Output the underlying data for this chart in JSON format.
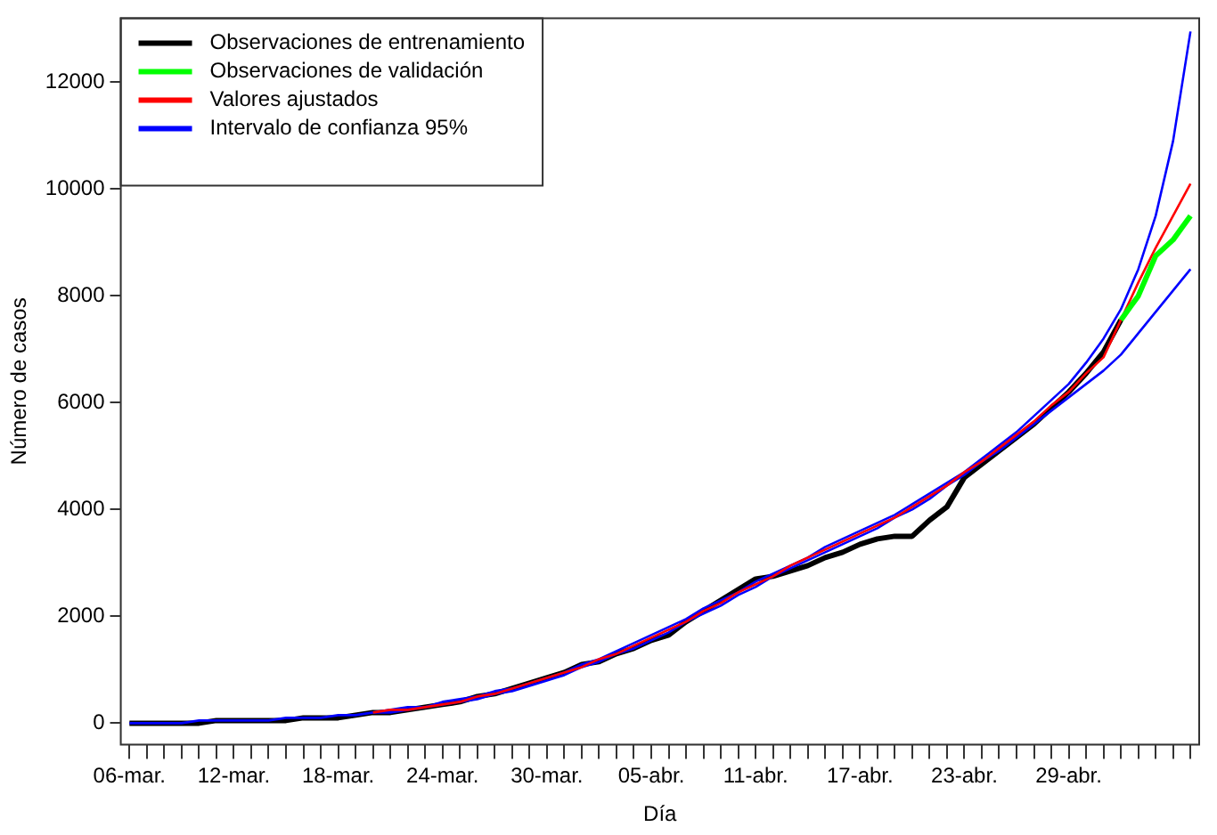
{
  "chart_data": {
    "type": "line",
    "xlabel": "Día",
    "ylabel": "Número de casos",
    "categories": [
      "06-mar.",
      null,
      null,
      null,
      null,
      null,
      "12-mar.",
      null,
      null,
      null,
      null,
      null,
      "18-mar.",
      null,
      null,
      null,
      null,
      null,
      "24-mar.",
      null,
      null,
      null,
      null,
      null,
      "30-mar.",
      null,
      null,
      null,
      null,
      null,
      "05-abr.",
      null,
      null,
      null,
      null,
      null,
      "11-abr.",
      null,
      null,
      null,
      null,
      null,
      "17-abr.",
      null,
      null,
      null,
      null,
      null,
      "23-abr.",
      null,
      null,
      null,
      null,
      null,
      "29-abr.",
      null,
      null,
      null,
      null,
      null,
      null,
      null
    ],
    "series": [
      {
        "name": "Observaciones de entrenamiento",
        "color": "#000000",
        "values": [
          0,
          0,
          0,
          0,
          0,
          50,
          50,
          50,
          50,
          50,
          100,
          100,
          100,
          150,
          200,
          200,
          250,
          300,
          350,
          400,
          500,
          550,
          650,
          750,
          850,
          950,
          1100,
          1150,
          1300,
          1400,
          1550,
          1650,
          1900,
          2100,
          2300,
          2500,
          2700,
          2750,
          2850,
          2950,
          3100,
          3200,
          3350,
          3450,
          3500,
          3500,
          3800,
          4050,
          4600,
          4850,
          5100,
          5350,
          5600,
          5900,
          6200,
          6550,
          6950,
          7550,
          null,
          null,
          null,
          null
        ]
      },
      {
        "name": "Observaciones de validación",
        "color": "#00ff00",
        "values": [
          null,
          null,
          null,
          null,
          null,
          null,
          null,
          null,
          null,
          null,
          null,
          null,
          null,
          null,
          null,
          null,
          null,
          null,
          null,
          null,
          null,
          null,
          null,
          null,
          null,
          null,
          null,
          null,
          null,
          null,
          null,
          null,
          null,
          null,
          null,
          null,
          null,
          null,
          null,
          null,
          null,
          null,
          null,
          null,
          null,
          null,
          null,
          null,
          null,
          null,
          null,
          null,
          null,
          null,
          null,
          null,
          null,
          7550,
          8000,
          8750,
          9050,
          9500
        ]
      },
      {
        "name": "Valores ajustados",
        "color": "#ff0000",
        "values": [
          null,
          null,
          null,
          null,
          null,
          null,
          null,
          null,
          null,
          null,
          null,
          null,
          null,
          null,
          200,
          250,
          250,
          300,
          350,
          400,
          500,
          550,
          650,
          750,
          850,
          950,
          1050,
          1200,
          1300,
          1450,
          1600,
          1750,
          1900,
          2100,
          2250,
          2450,
          2600,
          2750,
          2950,
          3100,
          3250,
          3400,
          3550,
          3700,
          3850,
          4050,
          4250,
          4450,
          4700,
          4900,
          5150,
          5400,
          5650,
          5950,
          6200,
          6550,
          6850,
          7550,
          8250,
          8900,
          9500,
          10100
        ]
      },
      {
        "name": "Intervalo de confianza 95%",
        "color": "#0000ff",
        "values": [
          0,
          0,
          0,
          0,
          50,
          50,
          50,
          50,
          50,
          100,
          100,
          100,
          150,
          150,
          200,
          250,
          300,
          300,
          400,
          450,
          500,
          600,
          650,
          750,
          850,
          950,
          1100,
          1200,
          1350,
          1500,
          1650,
          1800,
          1950,
          2150,
          2300,
          2450,
          2650,
          2800,
          2950,
          3100,
          3300,
          3450,
          3600,
          3750,
          3900,
          4100,
          4300,
          4500,
          4700,
          4950,
          5200,
          5450,
          5750,
          6050,
          6350,
          6750,
          7200,
          7750,
          8500,
          9500,
          10900,
          12950
        ]
      },
      {
        "color": "#0000ff",
        "values": [
          null,
          null,
          null,
          null,
          null,
          null,
          null,
          null,
          null,
          null,
          null,
          null,
          null,
          null,
          200,
          200,
          250,
          300,
          350,
          400,
          450,
          550,
          600,
          700,
          800,
          900,
          1050,
          1150,
          1300,
          1400,
          1550,
          1700,
          1900,
          2050,
          2200,
          2400,
          2550,
          2750,
          2900,
          3050,
          3200,
          3350,
          3500,
          3650,
          3850,
          4000,
          4200,
          4450,
          4650,
          4900,
          5100,
          5350,
          5600,
          5850,
          6100,
          6350,
          6600,
          6900,
          7300,
          7700,
          8100,
          8500
        ]
      }
    ],
    "ylim": [
      -400,
      13200
    ],
    "yticks": [
      0,
      2000,
      4000,
      6000,
      8000,
      10000,
      12000
    ],
    "grid": false,
    "legend": "top left",
    "marker": "none",
    "line_style": "solid"
  }
}
